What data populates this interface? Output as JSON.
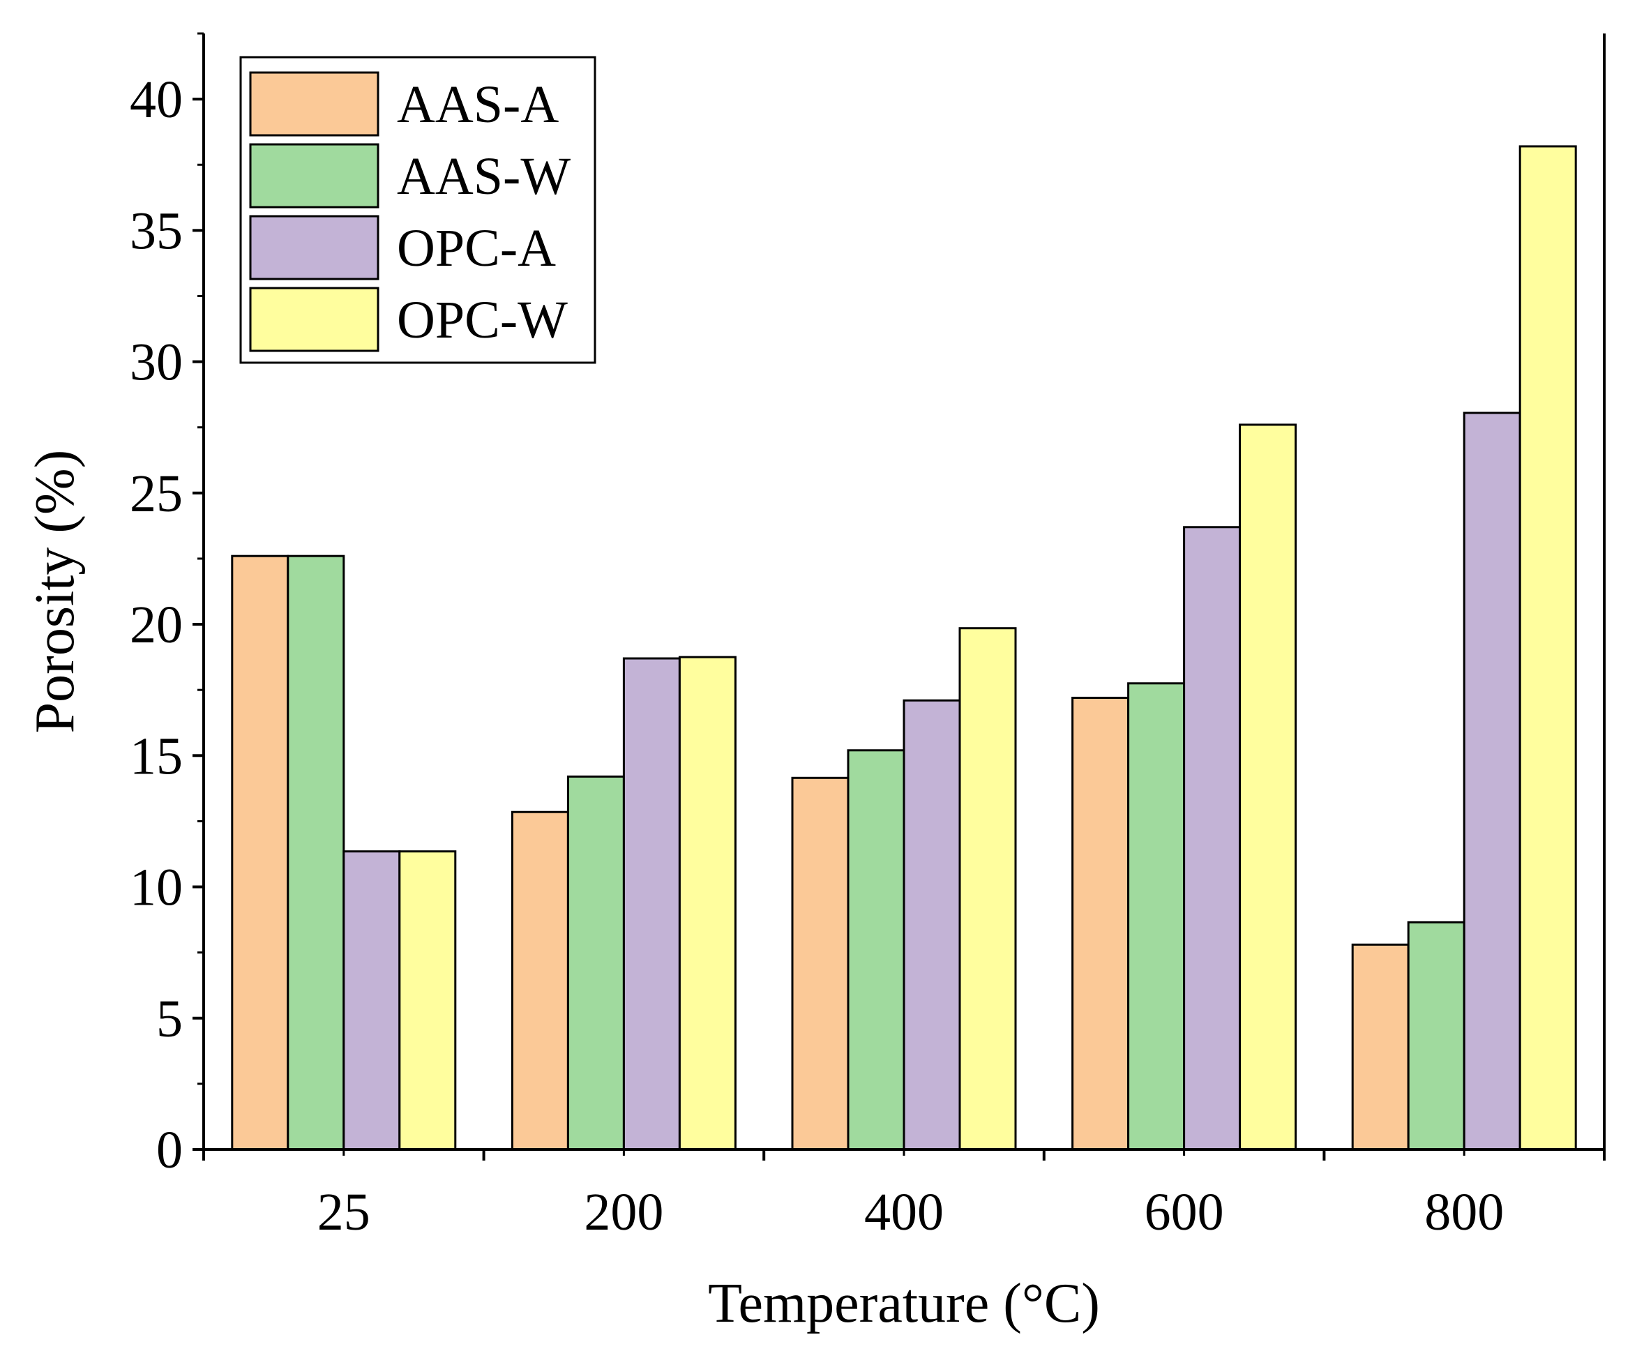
{
  "chart_data": {
    "type": "bar",
    "title": "",
    "xlabel": "Temperature (°C)",
    "ylabel": "Porosity (%)",
    "ylim": [
      0,
      42.5
    ],
    "yticks": [
      0,
      5,
      10,
      15,
      20,
      25,
      30,
      35,
      40
    ],
    "yminor_step": 2.5,
    "categories": [
      "25",
      "200",
      "400",
      "600",
      "800"
    ],
    "series": [
      {
        "name": "AAS-A",
        "color": "#FBC997",
        "values": [
          22.6,
          12.85,
          14.15,
          17.2,
          7.8
        ]
      },
      {
        "name": "AAS-W",
        "color": "#A0DA9E",
        "values": [
          22.6,
          14.2,
          15.2,
          17.75,
          8.65
        ]
      },
      {
        "name": "OPC-A",
        "color": "#C3B3D6",
        "values": [
          11.35,
          18.7,
          17.1,
          23.7,
          28.05
        ]
      },
      {
        "name": "OPC-W",
        "color": "#FFFE9E",
        "values": [
          11.35,
          18.75,
          19.85,
          27.6,
          38.2
        ]
      }
    ],
    "legend_position": "top-left",
    "grid": false
  }
}
